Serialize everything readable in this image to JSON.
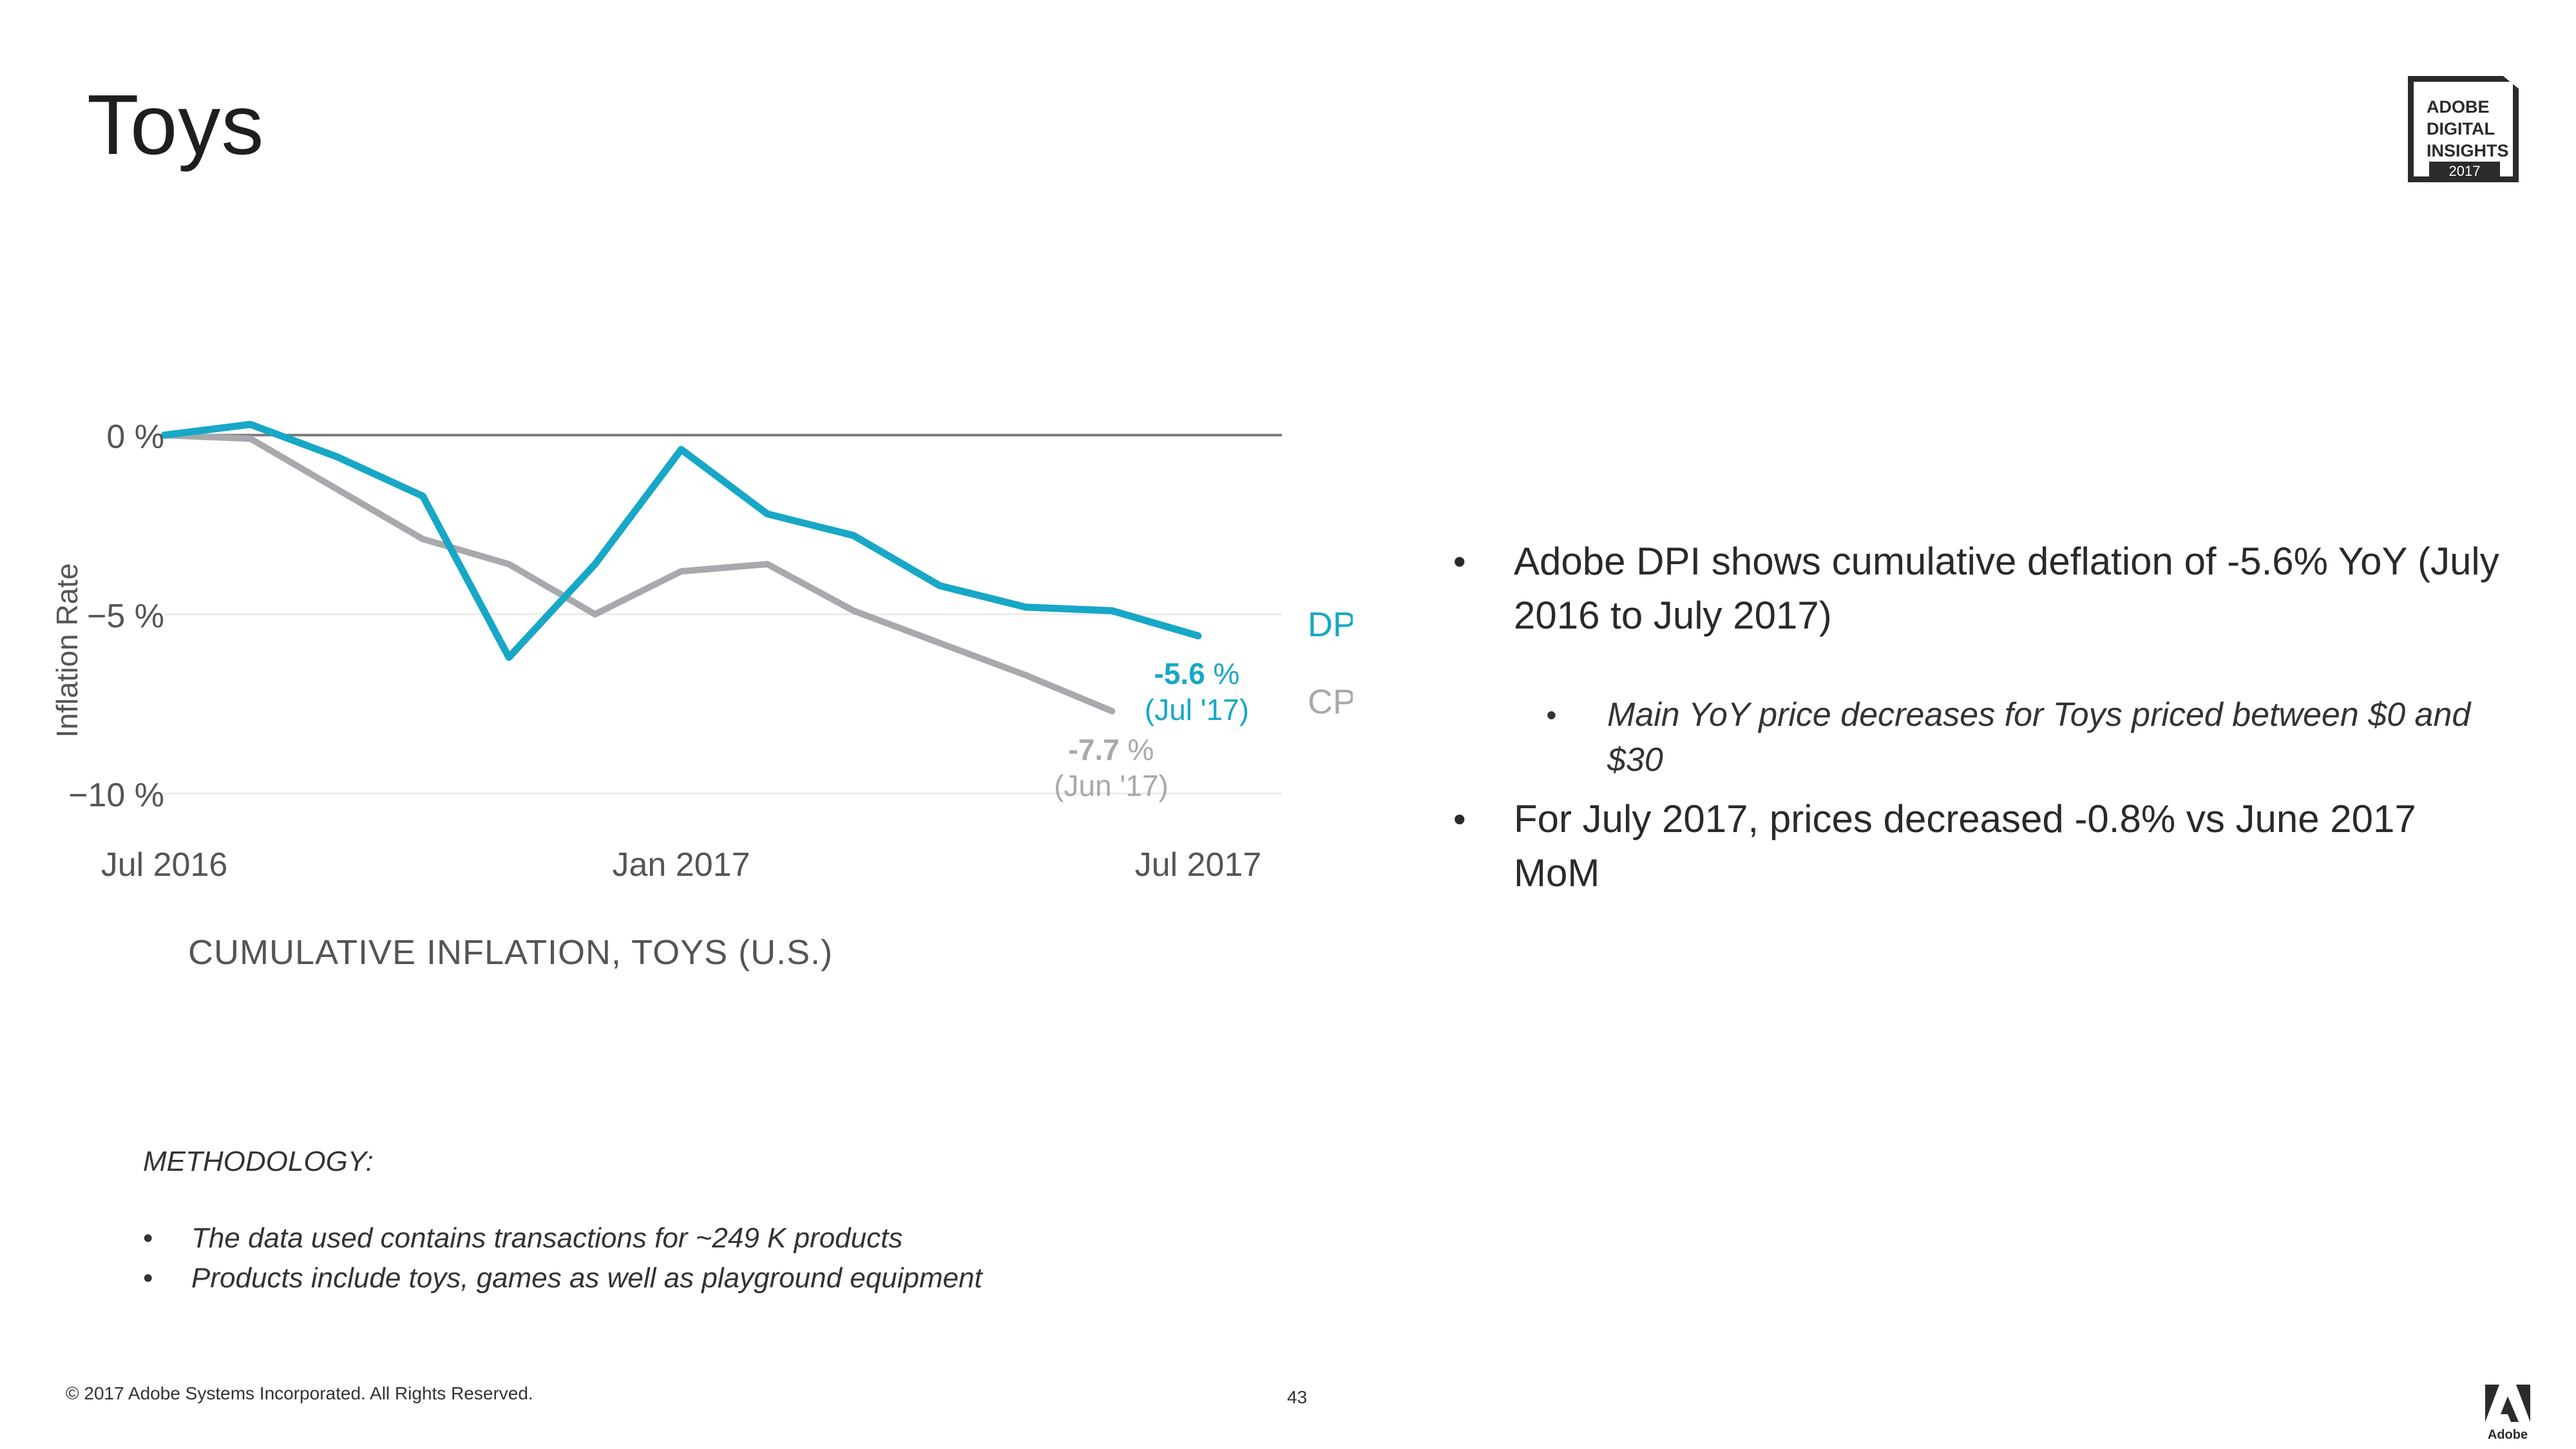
{
  "slide": {
    "title": "Toys",
    "logo": {
      "lines": [
        "ADOBE",
        "DIGITAL",
        "INSIGHTS"
      ],
      "year": "2017"
    },
    "bullets": [
      "Adobe DPI shows cumulative deflation of -5.6% YoY (July 2016 to July 2017)",
      "For July 2017, prices decreased -0.8% vs June 2017 MoM"
    ],
    "sub_bullet": "Main YoY price decreases for Toys priced between $0 and $30",
    "methodology": {
      "heading": "METHODOLOGY:",
      "items": [
        "The data used contains transactions for ~249 K products",
        "Products include toys, games as well as playground equipment"
      ]
    },
    "footer": "© 2017 Adobe Systems Incorporated.  All Rights Reserved.",
    "page_number": "43",
    "bullet_char": "•",
    "colors": {
      "dpi": "#17a7c7",
      "cpi": "#a7a9ad",
      "zero_line": "#7a7a7a",
      "grid": "#ececec"
    },
    "icons": {
      "adobe": "adobe-logo-icon"
    }
  },
  "chart_data": {
    "type": "line",
    "title": "CUMULATIVE INFLATION, TOYS (U.S.)",
    "ylabel": "Inflation Rate",
    "xlabel": "",
    "x": [
      "2016-07",
      "2016-08",
      "2016-09",
      "2016-10",
      "2016-11",
      "2016-12",
      "2017-01",
      "2017-02",
      "2017-03",
      "2017-04",
      "2017-05",
      "2017-06",
      "2017-07"
    ],
    "x_tick_labels": [
      {
        "x": "2016-07",
        "label": "Jul 2016"
      },
      {
        "x": "2017-01",
        "label": "Jan 2017"
      },
      {
        "x": "2017-07",
        "label": "Jul 2017"
      }
    ],
    "y_ticks": [
      {
        "value": 0,
        "label": "0 %"
      },
      {
        "value": -5,
        "label": "−5 %"
      },
      {
        "value": -10,
        "label": "−10 %"
      }
    ],
    "ylim": [
      -10.5,
      1
    ],
    "grid": true,
    "legend": "right",
    "series": [
      {
        "name": "DPI",
        "values": [
          0,
          0.3,
          -0.6,
          -1.7,
          -6.2,
          -3.6,
          -0.4,
          -2.2,
          -2.8,
          -4.2,
          -4.8,
          -4.9,
          -5.6
        ]
      },
      {
        "name": "CPI",
        "values": [
          0,
          -0.1,
          -1.5,
          -2.9,
          -3.6,
          -5.0,
          -3.8,
          -3.6,
          -4.9,
          -5.8,
          -6.7,
          -7.7,
          null
        ]
      }
    ],
    "annotations": [
      {
        "series": "DPI",
        "value": "-5.6",
        "unit": " %",
        "period": "(Jul '17)"
      },
      {
        "series": "CPI",
        "value": "-7.7",
        "unit": " %",
        "period": "(Jun '17)"
      }
    ]
  }
}
